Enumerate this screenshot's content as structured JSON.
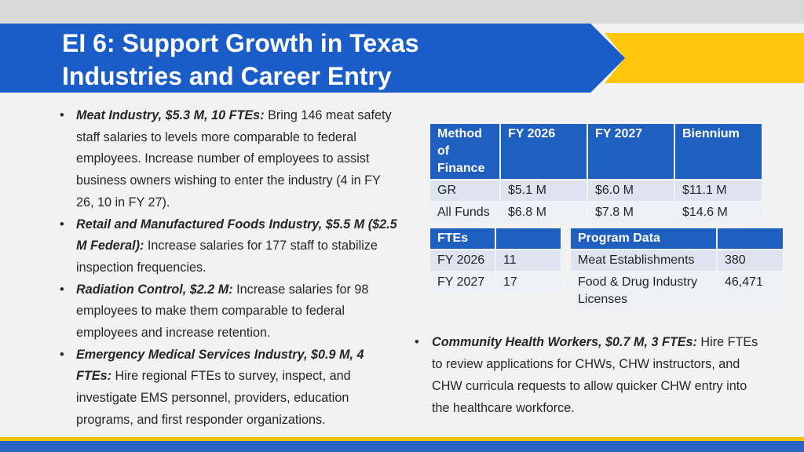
{
  "title": {
    "line1": "EI 6: Support Growth in Texas",
    "line2": "Industries and Career Entry"
  },
  "colors": {
    "title_blue": "#1a5cc8",
    "gold": "#ffc60b",
    "header_blue": "#1f5fbf"
  },
  "bullets": [
    {
      "lead": "Meat Industry, $5.3 M, 10 FTEs:",
      "text": " Bring 146 meat safety staff salaries to levels more comparable to federal employees. Increase number of employees to assist business owners wishing to enter the industry (4 in FY 26, 10 in FY 27)."
    },
    {
      "lead": "Retail and Manufactured Foods Industry, $5.5 M ($2.5 M Federal):",
      "text": " Increase salaries for 177 staff to stabilize inspection frequencies."
    },
    {
      "lead": "Radiation Control, $2.2 M:",
      "text": " Increase salaries for 98 employees to make them comparable to federal employees and increase retention."
    },
    {
      "lead": "Emergency Medical Services Industry, $0.9 M, 4 FTEs:",
      "text": " Hire regional FTEs to survey, inspect, and investigate EMS personnel, providers, education programs, and first responder organizations."
    }
  ],
  "finance_table": {
    "headers": [
      "Method of Finance",
      "FY 2026",
      "FY 2027",
      "Biennium"
    ],
    "rows": [
      [
        "GR",
        "$5.1 M",
        "$6.0 M",
        "$11.1 M"
      ],
      [
        "All Funds",
        "$6.8 M",
        "$7.8 M",
        "$14.6 M"
      ]
    ]
  },
  "fte_table": {
    "headers": [
      "FTEs",
      ""
    ],
    "rows": [
      [
        "FY 2026",
        "11"
      ],
      [
        "FY 2027",
        "17"
      ]
    ]
  },
  "program_table": {
    "headers": [
      "Program Data",
      ""
    ],
    "rows": [
      [
        "Meat Establishments",
        "380"
      ],
      [
        "Food & Drug Industry Licenses",
        "46,471"
      ]
    ]
  },
  "chw_bullet": {
    "lead": "Community Health Workers, $0.7 M, 3 FTEs:",
    "text": " Hire FTEs to review applications for CHWs, CHW instructors, and  CHW curricula requests to allow quicker CHW entry into the healthcare workforce."
  }
}
